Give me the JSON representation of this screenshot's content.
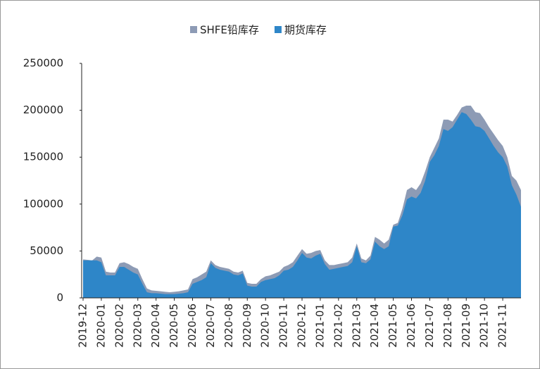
{
  "chart_data": {
    "type": "area",
    "categories": [
      "2019-12",
      null,
      null,
      null,
      "2020-01",
      null,
      null,
      null,
      "2020-02",
      null,
      null,
      null,
      "2020-03",
      null,
      null,
      null,
      "2020-04",
      null,
      null,
      null,
      "2020-05",
      null,
      null,
      null,
      "2020-06",
      null,
      null,
      null,
      "2020-07",
      null,
      null,
      null,
      "2020-08",
      null,
      null,
      null,
      "2020-09",
      null,
      null,
      null,
      "2020-10",
      null,
      null,
      null,
      "2020-11",
      null,
      null,
      null,
      "2020-12",
      null,
      null,
      null,
      "2021-01",
      null,
      null,
      null,
      "2021-02",
      null,
      null,
      null,
      "2021-03",
      null,
      null,
      null,
      "2021-04",
      null,
      null,
      null,
      "2021-05",
      null,
      null,
      null,
      "2021-06",
      null,
      null,
      null,
      "2021-07",
      null,
      null,
      null,
      "2021-08",
      null,
      null,
      null,
      "2021-09",
      null,
      null,
      null,
      "2021-10",
      null,
      null,
      null,
      "2021-11",
      null,
      null,
      null,
      null
    ],
    "series": [
      {
        "name": "SHFE铅库存",
        "color": "#8d9bb5",
        "values": [
          41000,
          40500,
          40000,
          44000,
          43000,
          28000,
          27000,
          27000,
          37000,
          38000,
          36000,
          33000,
          31000,
          20000,
          10000,
          8000,
          7500,
          7000,
          6500,
          6000,
          6500,
          7000,
          8000,
          9000,
          20000,
          22000,
          25000,
          28000,
          40000,
          35000,
          33000,
          32000,
          31000,
          28000,
          27000,
          29000,
          16000,
          15000,
          15000,
          20000,
          23000,
          24000,
          26000,
          28000,
          33000,
          35000,
          38000,
          45000,
          52000,
          47000,
          48000,
          50000,
          51000,
          40000,
          35000,
          35000,
          36000,
          37000,
          38000,
          43000,
          58000,
          42000,
          40000,
          45000,
          65000,
          62000,
          58000,
          62000,
          78000,
          80000,
          95000,
          115000,
          118000,
          115000,
          122000,
          135000,
          150000,
          160000,
          170000,
          190000,
          190000,
          188000,
          195000,
          203000,
          205000,
          205000,
          198000,
          197000,
          190000,
          182000,
          175000,
          168000,
          162000,
          150000,
          130000,
          125000,
          115000
        ]
      },
      {
        "name": "期货库存",
        "color": "#2e86c8",
        "values": [
          40000,
          40000,
          40000,
          40000,
          38000,
          24000,
          24000,
          24000,
          33000,
          33000,
          30000,
          27000,
          25000,
          15000,
          6000,
          5000,
          5000,
          4500,
          4000,
          4000,
          4000,
          4500,
          5000,
          6000,
          15000,
          17000,
          19000,
          22000,
          37000,
          32000,
          30000,
          29000,
          28000,
          25000,
          24000,
          26000,
          13000,
          12000,
          12000,
          17000,
          19000,
          20000,
          21000,
          24000,
          29000,
          30000,
          33000,
          40000,
          48000,
          43000,
          42000,
          45000,
          47000,
          36000,
          30000,
          31000,
          32000,
          33000,
          34000,
          38000,
          55000,
          38000,
          37000,
          41000,
          60000,
          55000,
          52000,
          55000,
          76000,
          77000,
          88000,
          105000,
          108000,
          106000,
          112000,
          125000,
          145000,
          152000,
          162000,
          180000,
          178000,
          182000,
          190000,
          198000,
          196000,
          190000,
          183000,
          182000,
          178000,
          170000,
          162000,
          155000,
          150000,
          140000,
          120000,
          110000,
          97000
        ]
      }
    ],
    "ylim": [
      0,
      250000
    ],
    "yticks": [
      0,
      50000,
      100000,
      150000,
      200000,
      250000
    ],
    "legend": "top"
  }
}
